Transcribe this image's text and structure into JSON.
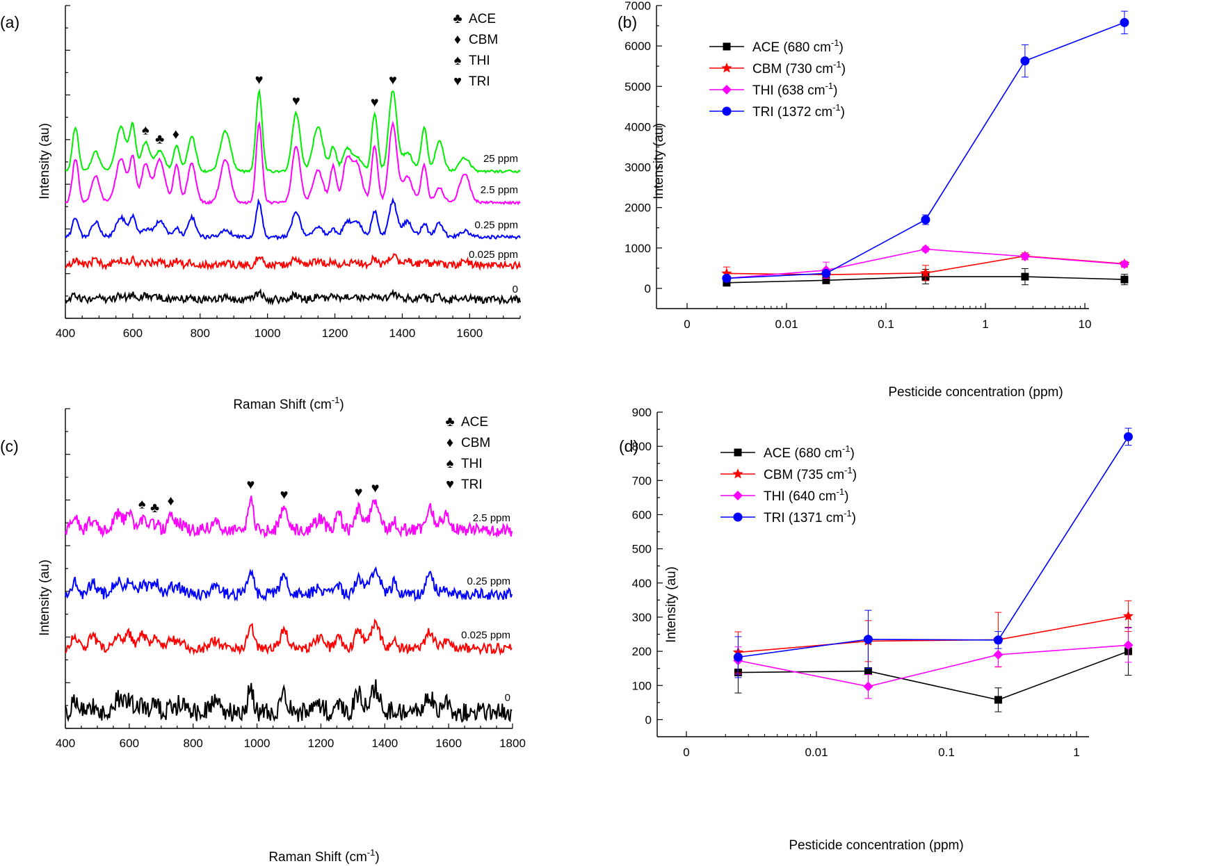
{
  "chart_data": [
    {
      "panel": "(a)",
      "type": "line",
      "title": "",
      "xlabel": "Raman Shift (cm",
      "xlabel_sup": "-1",
      "xlabel_close": ")",
      "ylabel": "Intensity (au)",
      "xlim": [
        400,
        1750
      ],
      "x_ticks": [
        400,
        600,
        800,
        1000,
        1200,
        1400,
        1600
      ],
      "legend": [
        {
          "symbol": "♣",
          "label": "ACE"
        },
        {
          "symbol": "♦",
          "label": "CBM"
        },
        {
          "symbol": "♠",
          "label": "THI"
        },
        {
          "symbol": "♥",
          "label": "TRI"
        }
      ],
      "peak_positions": [
        430,
        490,
        565,
        600,
        638,
        680,
        730,
        775,
        875,
        975,
        1085,
        1150,
        1195,
        1235,
        1265,
        1318,
        1372,
        1415,
        1465,
        1510,
        1585
      ],
      "series": [
        {
          "label": "0",
          "color": "#000000",
          "baseline": 0.06,
          "scale": 0.09,
          "noise": 0.012
        },
        {
          "label": "0.025 ppm",
          "color": "#ff0000",
          "baseline": 0.17,
          "scale": 0.12,
          "noise": 0.012
        },
        {
          "label": "0.25 ppm",
          "color": "#0000ff",
          "baseline": 0.26,
          "scale": 0.45,
          "noise": 0.006
        },
        {
          "label": "2.5 ppm",
          "color": "#ff00ff",
          "baseline": 0.37,
          "scale": 1.0,
          "noise": 0.004
        },
        {
          "label": "25 ppm",
          "color": "#00ee00",
          "baseline": 0.47,
          "scale": 1.02,
          "noise": 0.004
        }
      ],
      "annotations": [
        {
          "symbol": "♠",
          "x": 638,
          "series": "25 ppm"
        },
        {
          "symbol": "♣",
          "x": 680,
          "series": "25 ppm"
        },
        {
          "symbol": "♦",
          "x": 728,
          "series": "25 ppm"
        },
        {
          "symbol": "♥",
          "x": 975,
          "series": "25 ppm"
        },
        {
          "symbol": "♥",
          "x": 1085,
          "series": "25 ppm"
        },
        {
          "symbol": "♥",
          "x": 1318,
          "series": "25 ppm"
        },
        {
          "symbol": "♥",
          "x": 1372,
          "series": "25 ppm"
        }
      ]
    },
    {
      "panel": "(b)",
      "type": "line",
      "title": "",
      "xlabel": "Pesticide concentration (ppm)",
      "ylabel": "Intensity (au)",
      "xscale": "log",
      "x_tick_labels": [
        "0",
        "0.01",
        "0.1",
        "1",
        "10"
      ],
      "ylim": [
        -500,
        7000
      ],
      "y_ticks": [
        0,
        1000,
        2000,
        3000,
        4000,
        5000,
        6000,
        7000
      ],
      "x": [
        0.0025,
        0.025,
        0.25,
        2.5,
        25
      ],
      "series": [
        {
          "name": "ACE (680 cm",
          "sup": "-1",
          "close": ")",
          "color": "#000000",
          "marker": "square",
          "values": [
            140,
            200,
            290,
            290,
            220
          ],
          "errors": [
            60,
            50,
            180,
            200,
            130
          ]
        },
        {
          "name": "CBM (730 cm",
          "sup": "-1",
          "close": ")",
          "color": "#ff0000",
          "marker": "star",
          "values": [
            370,
            340,
            380,
            800,
            610
          ],
          "errors": [
            160,
            90,
            190,
            80,
            60
          ]
        },
        {
          "name": "THI (638 cm",
          "sup": "-1",
          "close": ")",
          "color": "#ff00ff",
          "marker": "diamond",
          "values": [
            250,
            450,
            970,
            790,
            600
          ],
          "errors": [
            70,
            200,
            60,
            70,
            60
          ]
        },
        {
          "name": "TRI (1372 cm",
          "sup": "-1",
          "close": ")",
          "color": "#0000ff",
          "marker": "circle",
          "values": [
            250,
            370,
            1700,
            5630,
            6580
          ],
          "errors": [
            60,
            60,
            120,
            400,
            280
          ]
        }
      ]
    },
    {
      "panel": "(c)",
      "type": "line",
      "title": "",
      "xlabel": "Raman Shift (cm",
      "xlabel_sup": "-1",
      "xlabel_close": ")",
      "ylabel": "Intensity (au)",
      "xlim": [
        400,
        1800
      ],
      "x_ticks": [
        400,
        600,
        800,
        1000,
        1200,
        1400,
        1600,
        1800
      ],
      "legend": [
        {
          "symbol": "♣",
          "label": "ACE"
        },
        {
          "symbol": "♦",
          "label": "CBM"
        },
        {
          "symbol": "♠",
          "label": "THI"
        },
        {
          "symbol": "♥",
          "label": "TRI"
        }
      ],
      "peak_positions": [
        430,
        485,
        565,
        600,
        640,
        680,
        730,
        760,
        870,
        980,
        1085,
        1195,
        1255,
        1318,
        1370,
        1430,
        1540,
        1590
      ],
      "series": [
        {
          "label": "0",
          "color": "#000000",
          "baseline": 0.05,
          "scale": 0.3,
          "noise": 0.03
        },
        {
          "label": "0.025 ppm",
          "color": "#ff0000",
          "baseline": 0.25,
          "scale": 0.3,
          "noise": 0.015
        },
        {
          "label": "0.25 ppm",
          "color": "#0000ff",
          "baseline": 0.42,
          "scale": 0.3,
          "noise": 0.018
        },
        {
          "label": "2.5 ppm",
          "color": "#ff00ff",
          "baseline": 0.62,
          "scale": 0.38,
          "noise": 0.02
        }
      ],
      "annotations": [
        {
          "symbol": "♠",
          "x": 640,
          "series": "2.5 ppm"
        },
        {
          "symbol": "♣",
          "x": 680,
          "series": "2.5 ppm"
        },
        {
          "symbol": "♦",
          "x": 730,
          "series": "2.5 ppm"
        },
        {
          "symbol": "♥",
          "x": 980,
          "series": "2.5 ppm"
        },
        {
          "symbol": "♥",
          "x": 1085,
          "series": "2.5 ppm"
        },
        {
          "symbol": "♥",
          "x": 1318,
          "series": "2.5 ppm"
        },
        {
          "symbol": "♥",
          "x": 1370,
          "series": "2.5 ppm"
        }
      ]
    },
    {
      "panel": "(d)",
      "type": "line",
      "title": "",
      "xlabel": "Pesticide concentration (ppm)",
      "ylabel": "Intensity (au)",
      "xscale": "log",
      "x_tick_labels": [
        "0",
        "0.01",
        "0.1",
        "1"
      ],
      "ylim": [
        -50,
        900
      ],
      "y_ticks": [
        0,
        100,
        200,
        300,
        400,
        500,
        600,
        700,
        800,
        900
      ],
      "x": [
        0.0025,
        0.025,
        0.25,
        2.5
      ],
      "series": [
        {
          "name": "ACE (680 cm",
          "sup": "-1",
          "close": ")",
          "color": "#000000",
          "marker": "square",
          "values": [
            138,
            142,
            58,
            200
          ],
          "errors": [
            60,
            80,
            35,
            70
          ]
        },
        {
          "name": "CBM (735 cm",
          "sup": "-1",
          "close": ")",
          "color": "#ff0000",
          "marker": "star",
          "values": [
            197,
            230,
            234,
            303
          ],
          "errors": [
            60,
            60,
            80,
            45
          ]
        },
        {
          "name": "THI (640 cm",
          "sup": "-1",
          "close": ")",
          "color": "#ff00ff",
          "marker": "diamond",
          "values": [
            173,
            97,
            190,
            218
          ],
          "errors": [
            40,
            35,
            35,
            50
          ]
        },
        {
          "name": "TRI (1371 cm",
          "sup": "-1",
          "close": ")",
          "color": "#0000ff",
          "marker": "circle",
          "values": [
            183,
            235,
            233,
            828
          ],
          "errors": [
            60,
            85,
            25,
            25
          ]
        }
      ]
    }
  ]
}
